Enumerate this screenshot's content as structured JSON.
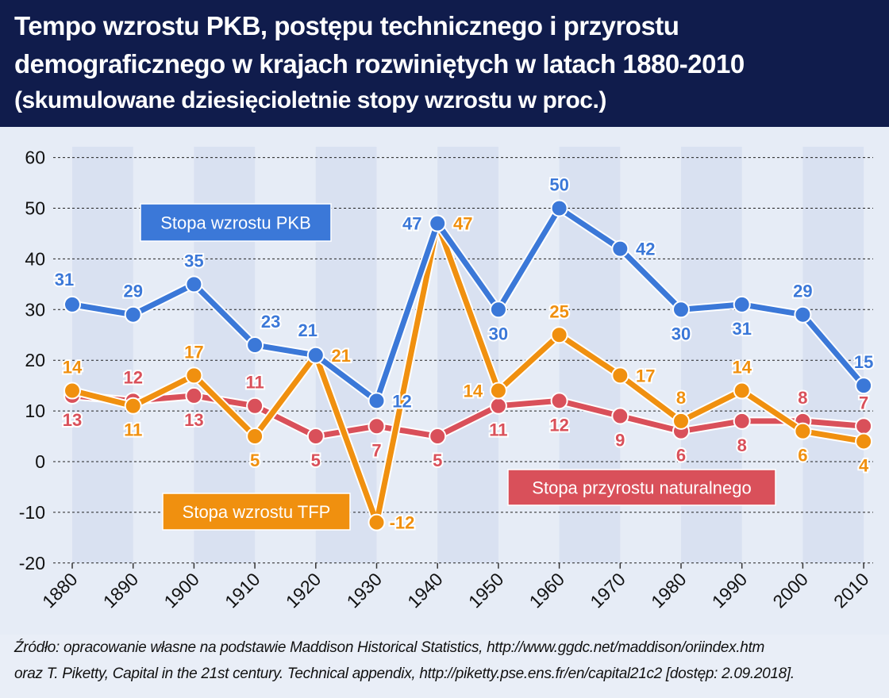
{
  "header": {
    "title_line1": "Tempo wzrostu PKB, postępu technicznego i przyrostu",
    "title_line2": "demograficznego w krajach rozwiniętych w latach 1880-2010",
    "subtitle": "(skumulowane dziesięcioletnie stopy wzrostu w proc.)"
  },
  "chart_data": {
    "type": "line",
    "title": "Tempo wzrostu PKB, postępu technicznego i przyrostu demograficznego w krajach rozwiniętych w latach 1880-2010",
    "subtitle": "(skumulowane dziesięcioletnie stopy wzrostu w proc.)",
    "x": [
      1880,
      1890,
      1900,
      1910,
      1920,
      1930,
      1940,
      1950,
      1960,
      1970,
      1980,
      1990,
      2000,
      2010
    ],
    "ylim": [
      -20,
      60
    ],
    "yticks": [
      -20,
      -10,
      0,
      10,
      20,
      30,
      40,
      50,
      60
    ],
    "grid": "horizontal dashed",
    "series": [
      {
        "name": "Stopa wzrostu PKB",
        "color": "#3b78d8",
        "values": [
          31,
          29,
          35,
          23,
          21,
          12,
          47,
          30,
          50,
          42,
          30,
          31,
          29,
          15
        ]
      },
      {
        "name": "Stopa wzrostu TFP",
        "color": "#f0900f",
        "values": [
          14,
          11,
          17,
          5,
          21,
          -12,
          47,
          14,
          25,
          17,
          8,
          14,
          6,
          4
        ]
      },
      {
        "name": "Stopa przyrostu naturalnego",
        "color": "#d9505a",
        "values": [
          13,
          12,
          13,
          11,
          5,
          7,
          5,
          11,
          12,
          9,
          6,
          8,
          8,
          7
        ]
      }
    ]
  },
  "source": {
    "line1": "Źródło: opracowanie własne na podstawie Maddison Historical Statistics, http://www.ggdc.net/maddison/oriindex.htm",
    "line2": "oraz T. Piketty, Capital in the 21st century. Technical appendix, http://piketty.pse.ens.fr/en/capital21c2 [dostęp: 2.09.2018]."
  }
}
